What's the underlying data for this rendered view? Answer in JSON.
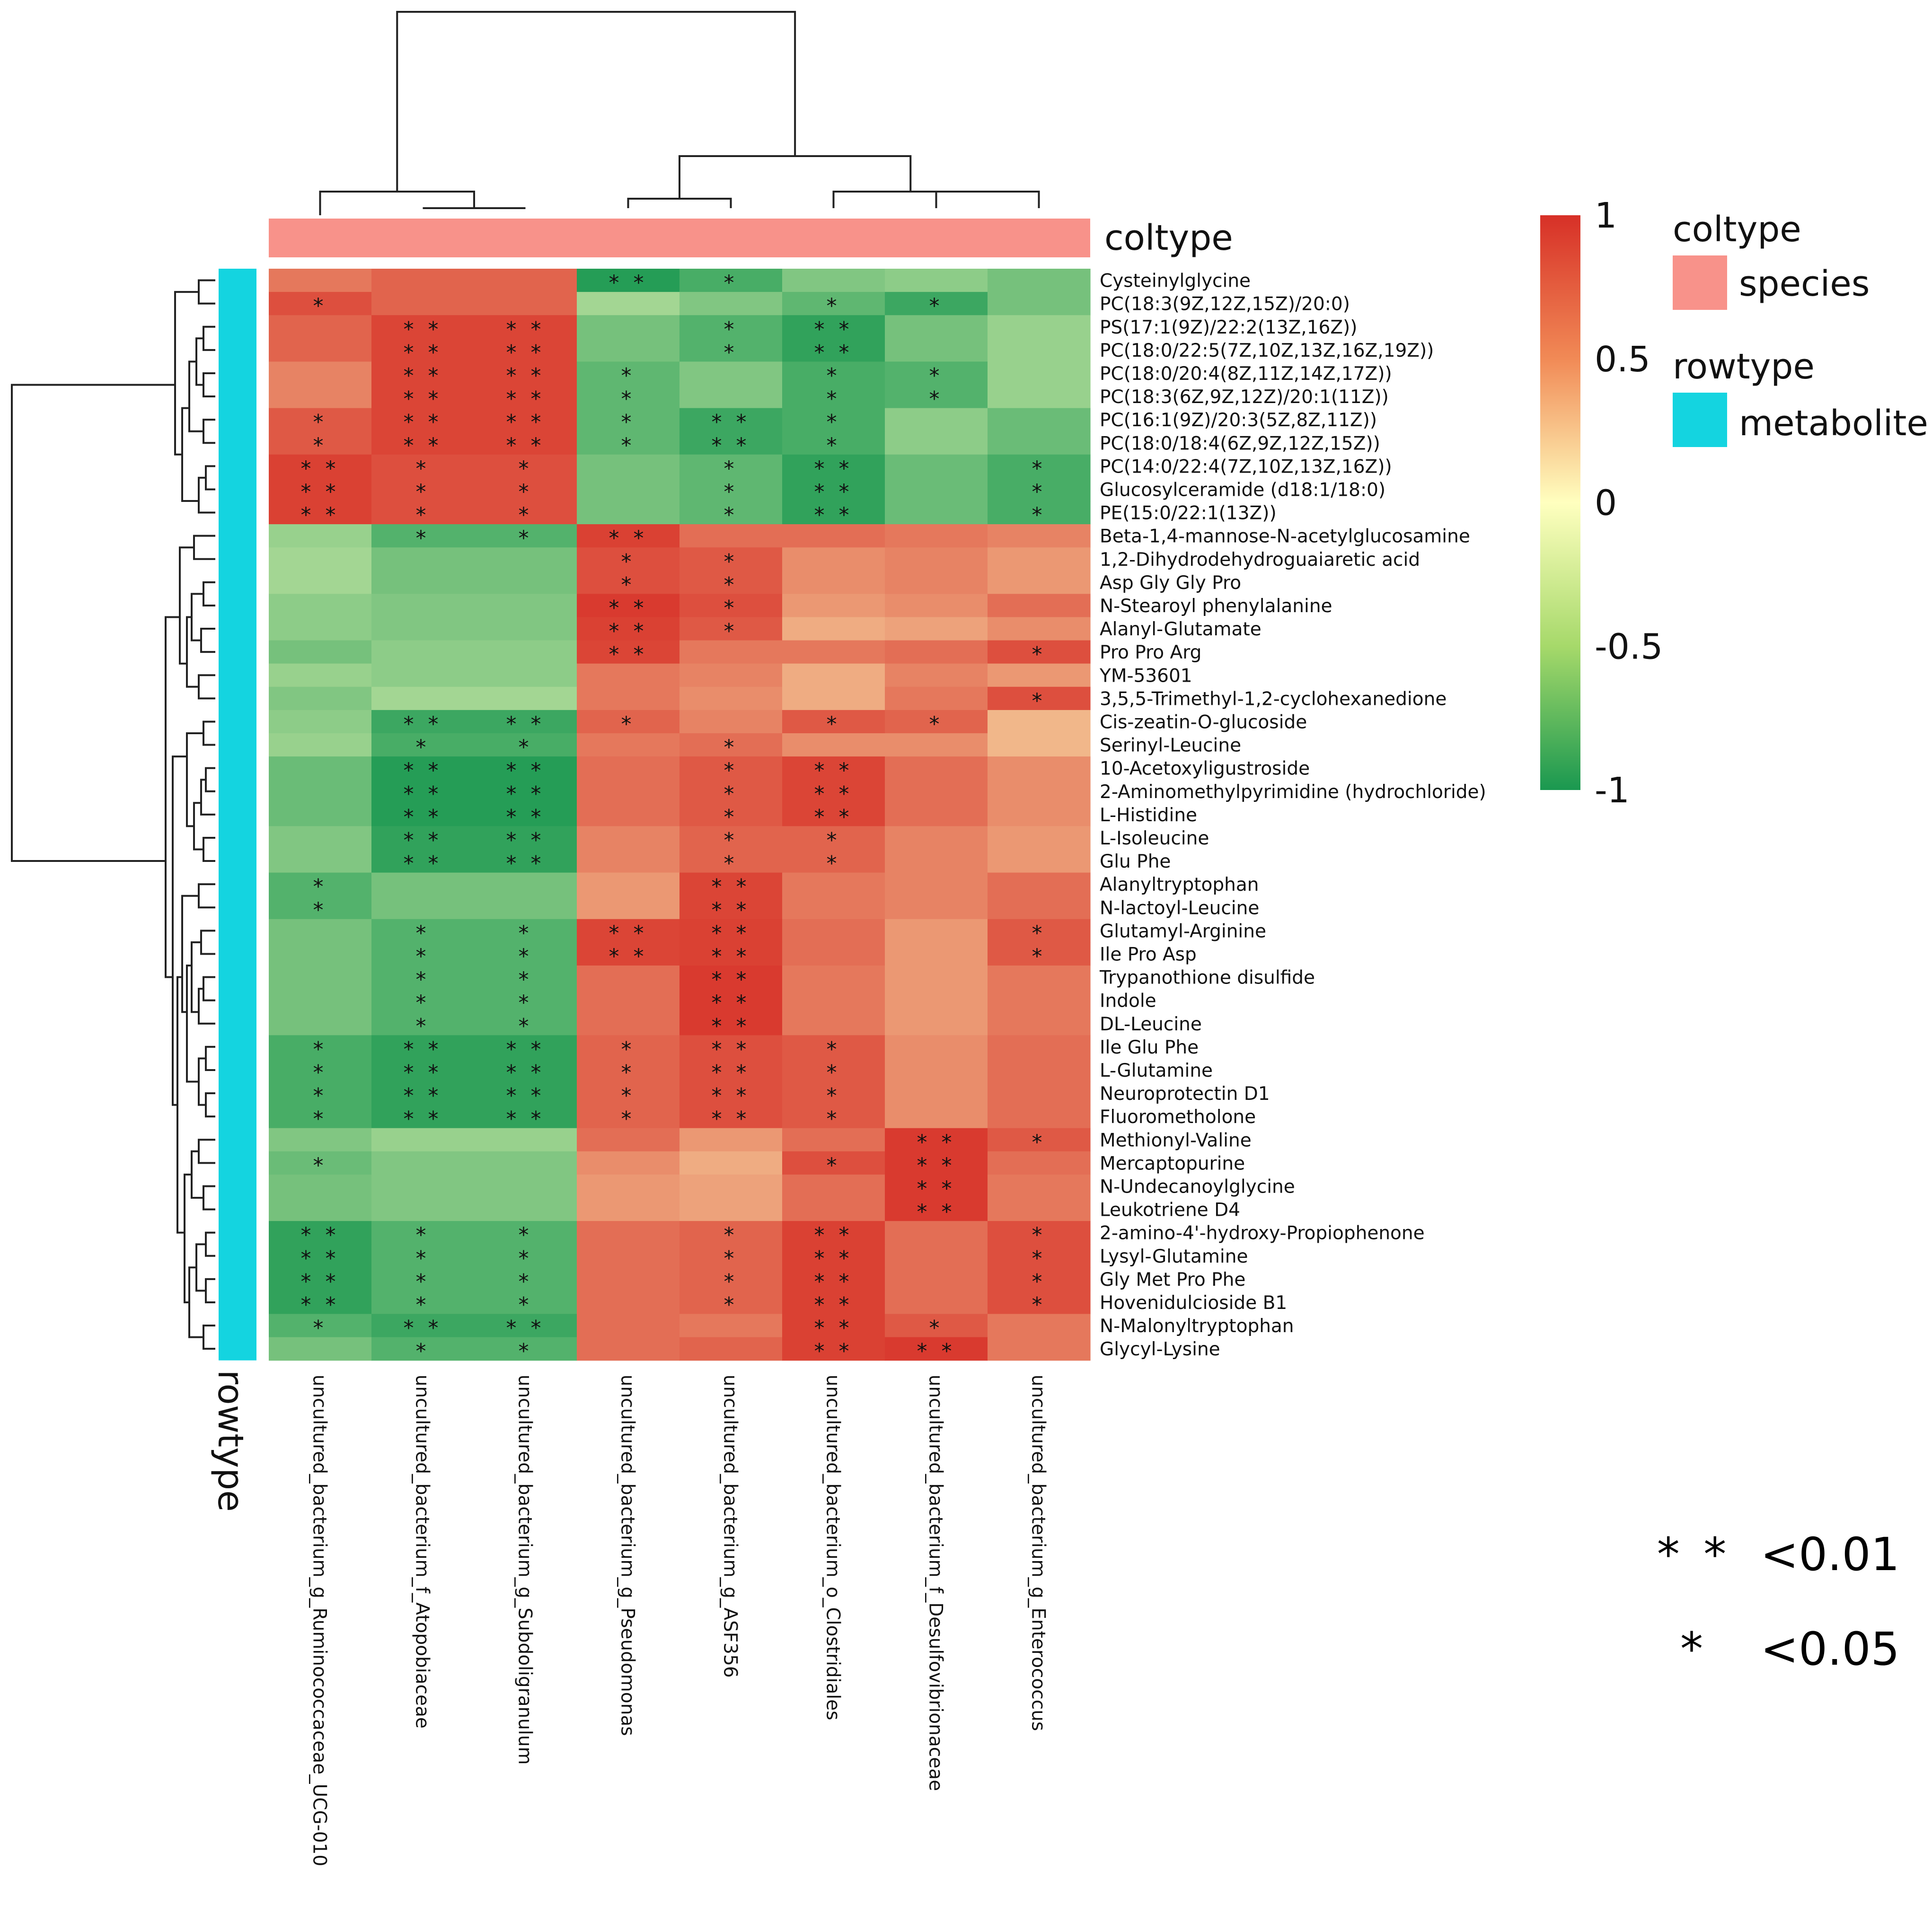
{
  "chart_data": {
    "type": "heatmap",
    "columns": [
      "uncultured_bacterium_g_Ruminococcaceae_UCG-010",
      "uncultured_bacterium_f_Atopobiaceae",
      "uncultured_bacterium_g_Subdoligranulum",
      "uncultured_bacterium_g_Pseudomonas",
      "uncultured_bacterium_g_ASF356",
      "uncultured_bacterium_o_Clostridiales",
      "uncultured_bacterium_f_Desulfovibrionaceae",
      "uncultured_bacterium_g_Enterococcus"
    ],
    "rows": [
      "Cysteinylglycine",
      "PC(18:3(9Z,12Z,15Z)/20:0)",
      "PS(17:1(9Z)/22:2(13Z,16Z))",
      "PC(18:0/22:5(7Z,10Z,13Z,16Z,19Z))",
      "PC(18:0/20:4(8Z,11Z,14Z,17Z))",
      "PC(18:3(6Z,9Z,12Z)/20:1(11Z))",
      "PC(16:1(9Z)/20:3(5Z,8Z,11Z))",
      "PC(18:0/18:4(6Z,9Z,12Z,15Z))",
      "PC(14:0/22:4(7Z,10Z,13Z,16Z))",
      "Glucosylceramide (d18:1/18:0)",
      "PE(15:0/22:1(13Z))",
      "Beta-1,4-mannose-N-acetylglucosamine",
      "1,2-Dihydrodehydroguaiaretic acid",
      "Asp Gly Gly Pro",
      "N-Stearoyl phenylalanine",
      "Alanyl-Glutamate",
      "Pro Pro Arg",
      "YM-53601",
      "3,5,5-Trimethyl-1,2-cyclohexanedione",
      "Cis-zeatin-O-glucoside",
      "Serinyl-Leucine",
      "10-Acetoxyligustroside",
      "2-Aminomethylpyrimidine (hydrochloride)",
      "L-Histidine",
      "L-Isoleucine",
      "Glu Phe",
      "Alanyltryptophan",
      "N-lactoyl-Leucine",
      "Glutamyl-Arginine",
      "Ile Pro Asp",
      "Trypanothione disulfide",
      "Indole",
      "DL-Leucine",
      "Ile Glu Phe",
      "L-Glutamine",
      "Neuroprotectin D1",
      "Fluorometholone",
      "Methionyl-Valine",
      "Mercaptopurine",
      "N-Undecanoylglycine",
      "Leukotriene D4",
      "2-amino-4'-hydroxy-Propiophenone",
      "Lysyl-Glutamine",
      "Gly Met Pro Phe",
      "Hovenidulcioside B1",
      "N-Malonyltryptophan",
      "Glycyl-Lysine"
    ],
    "values": [
      [
        0.65,
        0.75,
        0.75,
        -0.95,
        -0.8,
        -0.55,
        -0.5,
        -0.6
      ],
      [
        0.85,
        0.75,
        0.75,
        -0.4,
        -0.55,
        -0.7,
        -0.85,
        -0.6
      ],
      [
        0.75,
        0.9,
        0.9,
        -0.6,
        -0.75,
        -0.9,
        -0.6,
        -0.45
      ],
      [
        0.75,
        0.9,
        0.9,
        -0.6,
        -0.75,
        -0.9,
        -0.6,
        -0.45
      ],
      [
        0.6,
        0.9,
        0.9,
        -0.7,
        -0.55,
        -0.8,
        -0.75,
        -0.45
      ],
      [
        0.6,
        0.9,
        0.9,
        -0.7,
        -0.55,
        -0.8,
        -0.75,
        -0.45
      ],
      [
        0.8,
        0.9,
        0.9,
        -0.7,
        -0.85,
        -0.8,
        -0.5,
        -0.65
      ],
      [
        0.8,
        0.9,
        0.9,
        -0.7,
        -0.85,
        -0.8,
        -0.5,
        -0.65
      ],
      [
        0.92,
        0.85,
        0.85,
        -0.6,
        -0.7,
        -0.9,
        -0.65,
        -0.8
      ],
      [
        0.92,
        0.85,
        0.85,
        -0.6,
        -0.7,
        -0.9,
        -0.65,
        -0.8
      ],
      [
        0.92,
        0.85,
        0.85,
        -0.6,
        -0.7,
        -0.9,
        -0.65,
        -0.8
      ],
      [
        -0.45,
        -0.75,
        -0.75,
        0.92,
        0.7,
        0.7,
        0.65,
        0.6
      ],
      [
        -0.4,
        -0.6,
        -0.6,
        0.85,
        0.8,
        0.55,
        0.6,
        0.5
      ],
      [
        -0.4,
        -0.6,
        -0.6,
        0.85,
        0.8,
        0.55,
        0.6,
        0.5
      ],
      [
        -0.5,
        -0.55,
        -0.55,
        0.95,
        0.85,
        0.5,
        0.55,
        0.7
      ],
      [
        -0.5,
        -0.55,
        -0.55,
        0.92,
        0.8,
        0.4,
        0.45,
        0.55
      ],
      [
        -0.6,
        -0.5,
        -0.5,
        0.9,
        0.65,
        0.65,
        0.7,
        0.85
      ],
      [
        -0.45,
        -0.5,
        -0.5,
        0.65,
        0.6,
        0.4,
        0.6,
        0.5
      ],
      [
        -0.55,
        -0.4,
        -0.4,
        0.65,
        0.55,
        0.4,
        0.65,
        0.85
      ],
      [
        -0.5,
        -0.85,
        -0.85,
        0.75,
        0.6,
        0.8,
        0.75,
        0.35
      ],
      [
        -0.45,
        -0.8,
        -0.8,
        0.65,
        0.7,
        0.55,
        0.55,
        0.35
      ],
      [
        -0.65,
        -0.95,
        -0.95,
        0.7,
        0.8,
        0.9,
        0.7,
        0.55
      ],
      [
        -0.65,
        -0.95,
        -0.95,
        0.7,
        0.8,
        0.9,
        0.7,
        0.55
      ],
      [
        -0.65,
        -0.95,
        -0.95,
        0.7,
        0.8,
        0.9,
        0.7,
        0.55
      ],
      [
        -0.55,
        -0.9,
        -0.9,
        0.6,
        0.75,
        0.75,
        0.6,
        0.5
      ],
      [
        -0.55,
        -0.9,
        -0.9,
        0.6,
        0.75,
        0.75,
        0.6,
        0.5
      ],
      [
        -0.75,
        -0.6,
        -0.6,
        0.5,
        0.9,
        0.65,
        0.6,
        0.7
      ],
      [
        -0.75,
        -0.6,
        -0.6,
        0.5,
        0.9,
        0.65,
        0.6,
        0.7
      ],
      [
        -0.6,
        -0.75,
        -0.75,
        0.9,
        0.92,
        0.7,
        0.5,
        0.8
      ],
      [
        -0.6,
        -0.75,
        -0.75,
        0.9,
        0.92,
        0.7,
        0.5,
        0.8
      ],
      [
        -0.6,
        -0.75,
        -0.75,
        0.7,
        0.95,
        0.65,
        0.5,
        0.65
      ],
      [
        -0.6,
        -0.75,
        -0.75,
        0.7,
        0.95,
        0.65,
        0.5,
        0.65
      ],
      [
        -0.6,
        -0.75,
        -0.75,
        0.7,
        0.95,
        0.65,
        0.5,
        0.65
      ],
      [
        -0.8,
        -0.9,
        -0.9,
        0.75,
        0.85,
        0.8,
        0.55,
        0.7
      ],
      [
        -0.8,
        -0.9,
        -0.9,
        0.75,
        0.85,
        0.8,
        0.55,
        0.7
      ],
      [
        -0.8,
        -0.9,
        -0.9,
        0.75,
        0.85,
        0.8,
        0.55,
        0.7
      ],
      [
        -0.8,
        -0.9,
        -0.9,
        0.75,
        0.85,
        0.8,
        0.55,
        0.7
      ],
      [
        -0.55,
        -0.45,
        -0.45,
        0.7,
        0.5,
        0.7,
        0.95,
        0.8
      ],
      [
        -0.65,
        -0.55,
        -0.55,
        0.55,
        0.4,
        0.85,
        0.95,
        0.7
      ],
      [
        -0.6,
        -0.55,
        -0.55,
        0.5,
        0.45,
        0.7,
        0.95,
        0.65
      ],
      [
        -0.6,
        -0.55,
        -0.55,
        0.5,
        0.45,
        0.7,
        0.95,
        0.65
      ],
      [
        -0.9,
        -0.75,
        -0.75,
        0.7,
        0.75,
        0.92,
        0.7,
        0.85
      ],
      [
        -0.9,
        -0.75,
        -0.75,
        0.7,
        0.75,
        0.92,
        0.7,
        0.85
      ],
      [
        -0.9,
        -0.75,
        -0.75,
        0.7,
        0.75,
        0.92,
        0.7,
        0.85
      ],
      [
        -0.9,
        -0.75,
        -0.75,
        0.7,
        0.75,
        0.92,
        0.7,
        0.85
      ],
      [
        -0.75,
        -0.85,
        -0.85,
        0.7,
        0.65,
        0.92,
        0.8,
        0.65
      ],
      [
        -0.6,
        -0.75,
        -0.75,
        0.7,
        0.75,
        0.92,
        0.95,
        0.65
      ]
    ],
    "significance": [
      [
        "",
        "",
        "",
        "**",
        "*",
        "",
        "",
        ""
      ],
      [
        "*",
        "",
        "",
        "",
        "",
        "*",
        "*",
        ""
      ],
      [
        "",
        "**",
        "**",
        "",
        "*",
        "**",
        "",
        ""
      ],
      [
        "",
        "**",
        "**",
        "",
        "*",
        "**",
        "",
        ""
      ],
      [
        "",
        "**",
        "**",
        "*",
        "",
        "*",
        "*",
        ""
      ],
      [
        "",
        "**",
        "**",
        "*",
        "",
        "*",
        "*",
        ""
      ],
      [
        "*",
        "**",
        "**",
        "*",
        "**",
        "*",
        "",
        ""
      ],
      [
        "*",
        "**",
        "**",
        "*",
        "**",
        "*",
        "",
        ""
      ],
      [
        "**",
        "*",
        "*",
        "",
        "*",
        "**",
        "",
        "*"
      ],
      [
        "**",
        "*",
        "*",
        "",
        "*",
        "**",
        "",
        "*"
      ],
      [
        "**",
        "*",
        "*",
        "",
        "*",
        "**",
        "",
        "*"
      ],
      [
        "",
        "*",
        "*",
        "**",
        "",
        "",
        "",
        ""
      ],
      [
        "",
        "",
        "",
        "*",
        "*",
        "",
        "",
        ""
      ],
      [
        "",
        "",
        "",
        "*",
        "*",
        "",
        "",
        ""
      ],
      [
        "",
        "",
        "",
        "**",
        "*",
        "",
        "",
        ""
      ],
      [
        "",
        "",
        "",
        "**",
        "*",
        "",
        "",
        ""
      ],
      [
        "",
        "",
        "",
        "**",
        "",
        "",
        "",
        "*"
      ],
      [
        "",
        "",
        "",
        "",
        "",
        "",
        "",
        ""
      ],
      [
        "",
        "",
        "",
        "",
        "",
        "",
        "",
        "*"
      ],
      [
        "",
        "**",
        "**",
        "*",
        "",
        "*",
        "*",
        ""
      ],
      [
        "",
        "*",
        "*",
        "",
        "*",
        "",
        "",
        ""
      ],
      [
        "",
        "**",
        "**",
        "",
        "*",
        "**",
        "",
        ""
      ],
      [
        "",
        "**",
        "**",
        "",
        "*",
        "**",
        "",
        ""
      ],
      [
        "",
        "**",
        "**",
        "",
        "*",
        "**",
        "",
        ""
      ],
      [
        "",
        "**",
        "**",
        "",
        "*",
        "*",
        "",
        ""
      ],
      [
        "",
        "**",
        "**",
        "",
        "*",
        "*",
        "",
        ""
      ],
      [
        "*",
        "",
        "",
        "",
        "**",
        "",
        "",
        ""
      ],
      [
        "*",
        "",
        "",
        "",
        "**",
        "",
        "",
        ""
      ],
      [
        "",
        "*",
        "*",
        "**",
        "**",
        "",
        "",
        "*"
      ],
      [
        "",
        "*",
        "*",
        "**",
        "**",
        "",
        "",
        "*"
      ],
      [
        "",
        "*",
        "*",
        "",
        "**",
        "",
        "",
        ""
      ],
      [
        "",
        "*",
        "*",
        "",
        "**",
        "",
        "",
        ""
      ],
      [
        "",
        "*",
        "*",
        "",
        "**",
        "",
        "",
        ""
      ],
      [
        "*",
        "**",
        "**",
        "*",
        "**",
        "*",
        "",
        ""
      ],
      [
        "*",
        "**",
        "**",
        "*",
        "**",
        "*",
        "",
        ""
      ],
      [
        "*",
        "**",
        "**",
        "*",
        "**",
        "*",
        "",
        ""
      ],
      [
        "*",
        "**",
        "**",
        "*",
        "**",
        "*",
        "",
        ""
      ],
      [
        "",
        "",
        "",
        "",
        "",
        "",
        "**",
        "*"
      ],
      [
        "*",
        "",
        "",
        "",
        "",
        "*",
        "**",
        ""
      ],
      [
        "",
        "",
        "",
        "",
        "",
        "",
        "**",
        ""
      ],
      [
        "",
        "",
        "",
        "",
        "",
        "",
        "**",
        ""
      ],
      [
        "**",
        "*",
        "*",
        "",
        "*",
        "**",
        "",
        "*"
      ],
      [
        "**",
        "*",
        "*",
        "",
        "*",
        "**",
        "",
        "*"
      ],
      [
        "**",
        "*",
        "*",
        "",
        "*",
        "**",
        "",
        "*"
      ],
      [
        "**",
        "*",
        "*",
        "",
        "*",
        "**",
        "",
        "*"
      ],
      [
        "*",
        "**",
        "**",
        "",
        "",
        "**",
        "*",
        ""
      ],
      [
        "",
        "*",
        "*",
        "",
        "",
        "**",
        "**",
        ""
      ]
    ],
    "color_scale": {
      "min": -1,
      "max": 1,
      "ticks": [
        1,
        0.5,
        0,
        -0.5,
        -1
      ],
      "tick_labels": [
        "1",
        "0.5",
        "0",
        "-0.5",
        "-1"
      ],
      "low_color": "#1a9850",
      "mid_color": "#ffffbf",
      "high_color": "#d73027"
    },
    "annotations": {
      "coltype_title": "coltype",
      "coltype_value": "species",
      "coltype_color": "#f8928a",
      "rowtype_title": "rowtype",
      "rowtype_value": "metabolite",
      "rowtype_color": "#14d4e0"
    },
    "significance_legend": [
      {
        "symbol": "* *",
        "label": "<0.01"
      },
      {
        "symbol": "*",
        "label": "<0.05"
      }
    ],
    "column_dendrogram": true,
    "row_dendrogram": true
  }
}
